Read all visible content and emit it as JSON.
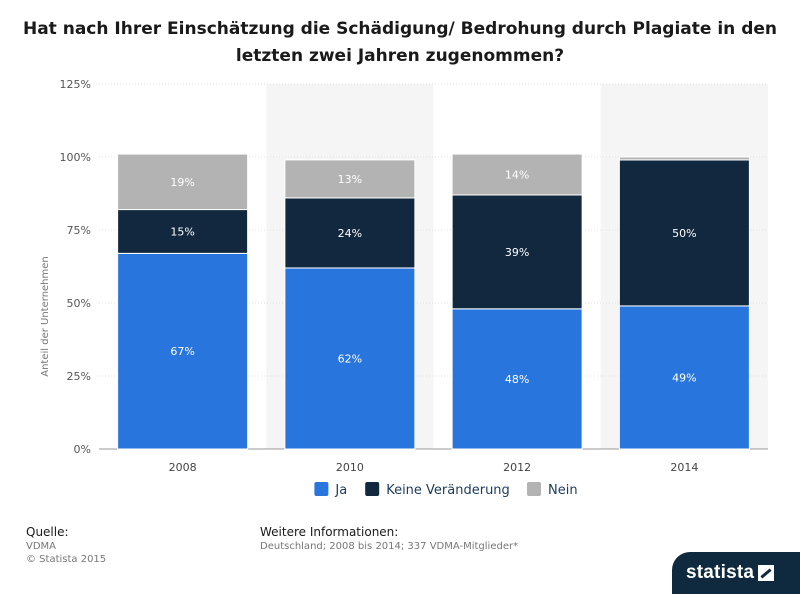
{
  "chart_data": {
    "type": "bar",
    "stacked": true,
    "title": [
      "Hat nach Ihrer Einschätzung die Schädigung/ Bedrohung durch Plagiate in den",
      "letzten zwei Jahren zugenommen?"
    ],
    "xlabel": "",
    "ylabel": "Anteil der Unternehmen",
    "ylim": [
      0,
      125
    ],
    "yticks": [
      0,
      25,
      50,
      75,
      100,
      125
    ],
    "ytick_labels": [
      "0%",
      "25%",
      "50%",
      "75%",
      "100%",
      "125%"
    ],
    "categories": [
      "2008",
      "2010",
      "2012",
      "2014"
    ],
    "series": [
      {
        "name": "Ja",
        "color": "#2875de",
        "values": [
          67,
          62,
          48,
          49
        ],
        "labels": [
          "67%",
          "62%",
          "48%",
          "49%"
        ]
      },
      {
        "name": "Keine Veränderung",
        "color": "#11283f",
        "values": [
          15,
          24,
          39,
          50
        ],
        "labels": [
          "15%",
          "24%",
          "39%",
          "50%"
        ]
      },
      {
        "name": "Nein",
        "color": "#b3b3b3",
        "values": [
          19,
          13,
          14,
          1
        ],
        "labels": [
          "19%",
          "13%",
          "14%",
          ""
        ]
      }
    ],
    "legend_position": "bottom",
    "grid": true
  },
  "footer": {
    "source_label": "Quelle:",
    "source_lines": [
      "VDMA",
      "© Statista 2015"
    ],
    "info_label": "Weitere Informationen:",
    "info_text": "Deutschland; 2008 bis 2014; 337 VDMA-Mitglieder*"
  },
  "brand": {
    "name": "statista"
  }
}
